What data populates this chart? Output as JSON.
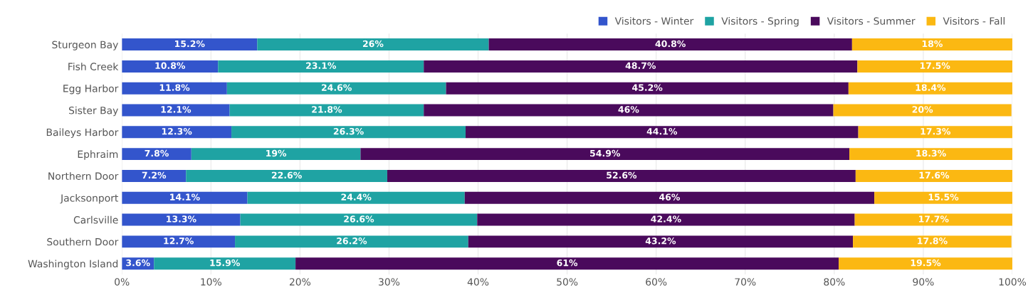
{
  "chart_data": {
    "type": "bar",
    "orientation": "horizontal",
    "stacked": true,
    "categories": [
      "Sturgeon Bay",
      "Fish Creek",
      "Egg Harbor",
      "Sister Bay",
      "Baileys Harbor",
      "Ephraim",
      "Northern Door",
      "Jacksonport",
      "Carlsville",
      "Southern Door",
      "Washington Island"
    ],
    "series": [
      {
        "name": "Visitors - Winter",
        "color": "#3355cc",
        "values": [
          15.2,
          10.8,
          11.8,
          12.1,
          12.3,
          7.8,
          7.2,
          14.1,
          13.3,
          12.7,
          3.6
        ],
        "value_labels": [
          "15.2%",
          "10.8%",
          "11.8%",
          "12.1%",
          "12.3%",
          "7.8%",
          "7.2%",
          "14.1%",
          "13.3%",
          "12.7%",
          "3.6%"
        ]
      },
      {
        "name": "Visitors - Spring",
        "color": "#1fa3a3",
        "values": [
          26,
          23.1,
          24.6,
          21.8,
          26.3,
          19,
          22.6,
          24.4,
          26.6,
          26.2,
          15.9
        ],
        "value_labels": [
          "26%",
          "23.1%",
          "24.6%",
          "21.8%",
          "26.3%",
          "19%",
          "22.6%",
          "24.4%",
          "26.6%",
          "26.2%",
          "15.9%"
        ]
      },
      {
        "name": "Visitors - Summer",
        "color": "#4a0a5c",
        "values": [
          40.8,
          48.7,
          45.2,
          46,
          44.1,
          54.9,
          52.6,
          46,
          42.4,
          43.2,
          61
        ],
        "value_labels": [
          "40.8%",
          "48.7%",
          "45.2%",
          "46%",
          "44.1%",
          "54.9%",
          "52.6%",
          "46%",
          "42.4%",
          "43.2%",
          "61%"
        ]
      },
      {
        "name": "Visitors - Fall",
        "color": "#fbb812",
        "values": [
          18,
          17.5,
          18.4,
          20,
          17.3,
          18.3,
          17.6,
          15.5,
          17.7,
          17.8,
          19.5
        ],
        "value_labels": [
          "18%",
          "17.5%",
          "18.4%",
          "20%",
          "17.3%",
          "18.3%",
          "17.6%",
          "15.5%",
          "17.7%",
          "17.8%",
          "19.5%"
        ]
      }
    ],
    "xlim": [
      0,
      100
    ],
    "xticks": [
      {
        "value": 0,
        "label": "0%"
      },
      {
        "value": 10,
        "label": "10%"
      },
      {
        "value": 20,
        "label": "20%"
      },
      {
        "value": 30,
        "label": "30%"
      },
      {
        "value": 40,
        "label": "40%"
      },
      {
        "value": 50,
        "label": "50%"
      },
      {
        "value": 60,
        "label": "60%"
      },
      {
        "value": 70,
        "label": "70%"
      },
      {
        "value": 80,
        "label": "80%"
      },
      {
        "value": 90,
        "label": "90%"
      },
      {
        "value": 100,
        "label": "100%"
      }
    ],
    "grid": "x",
    "legend": "top right"
  }
}
